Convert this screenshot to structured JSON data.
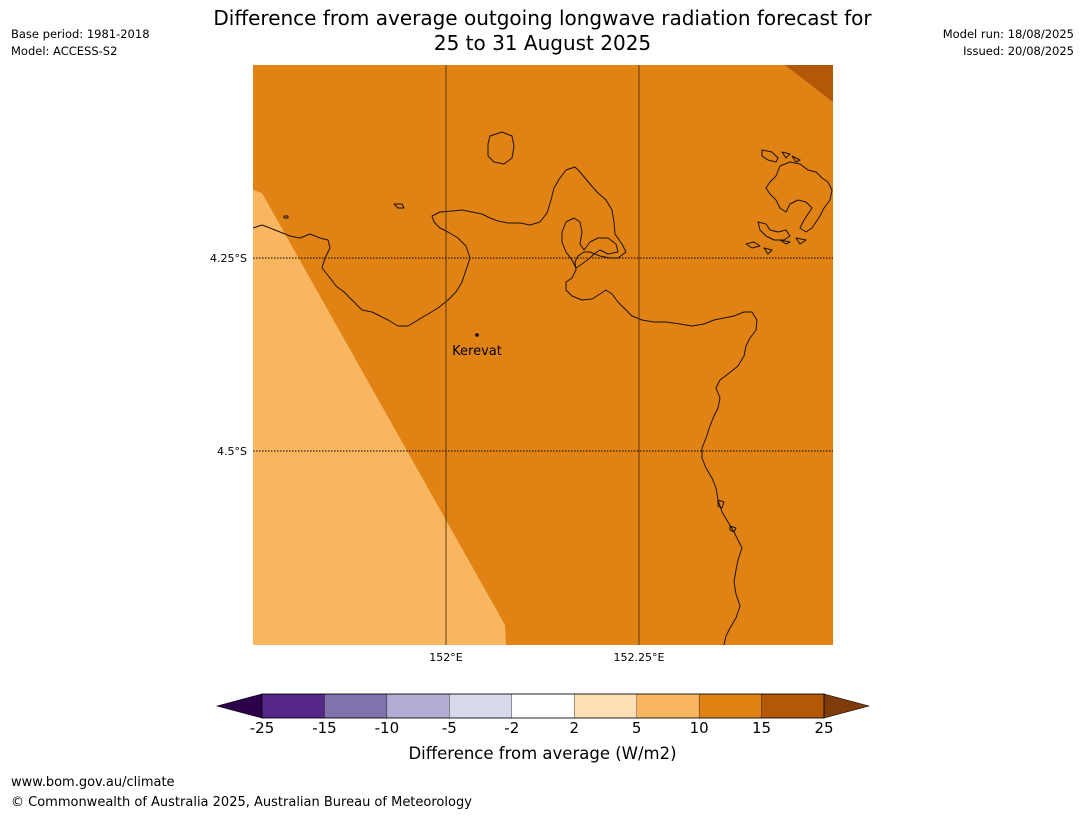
{
  "title": {
    "line1": "Difference from average outgoing longwave radiation forecast for",
    "line2": "25 to 31 August 2025"
  },
  "meta": {
    "base_period": "Base period: 1981-2018",
    "model": "Model: ACCESS-S2",
    "model_run": "Model run: 18/08/2025",
    "issued": "Issued: 20/08/2025"
  },
  "map": {
    "lat_labels": [
      "4.25°S",
      "4.5°S"
    ],
    "lon_labels": [
      "152°E",
      "152.25°E"
    ],
    "place_label": "Kerevat",
    "colors": {
      "band_5_10": "#f9b661",
      "band_10_15": "#e08214",
      "band_15_25": "#b35806",
      "coastline": "#1a1208"
    }
  },
  "colorbar": {
    "label": "Difference from average (W/m2)",
    "ticks": [
      "-25",
      "-15",
      "-10",
      "-5",
      "-2",
      "2",
      "5",
      "10",
      "15",
      "25"
    ],
    "colors": [
      "#542788",
      "#8073ac",
      "#b2abd2",
      "#d8daeb",
      "#ffffff",
      "#fee0b6",
      "#f9b661",
      "#e08214",
      "#b35806"
    ],
    "extend_low_color": "#2d004b",
    "extend_high_color": "#7f3b08"
  },
  "footer": {
    "url": "www.bom.gov.au/climate",
    "copyright": "© Commonwealth of Australia 2025, Australian Bureau of Meteorology"
  }
}
